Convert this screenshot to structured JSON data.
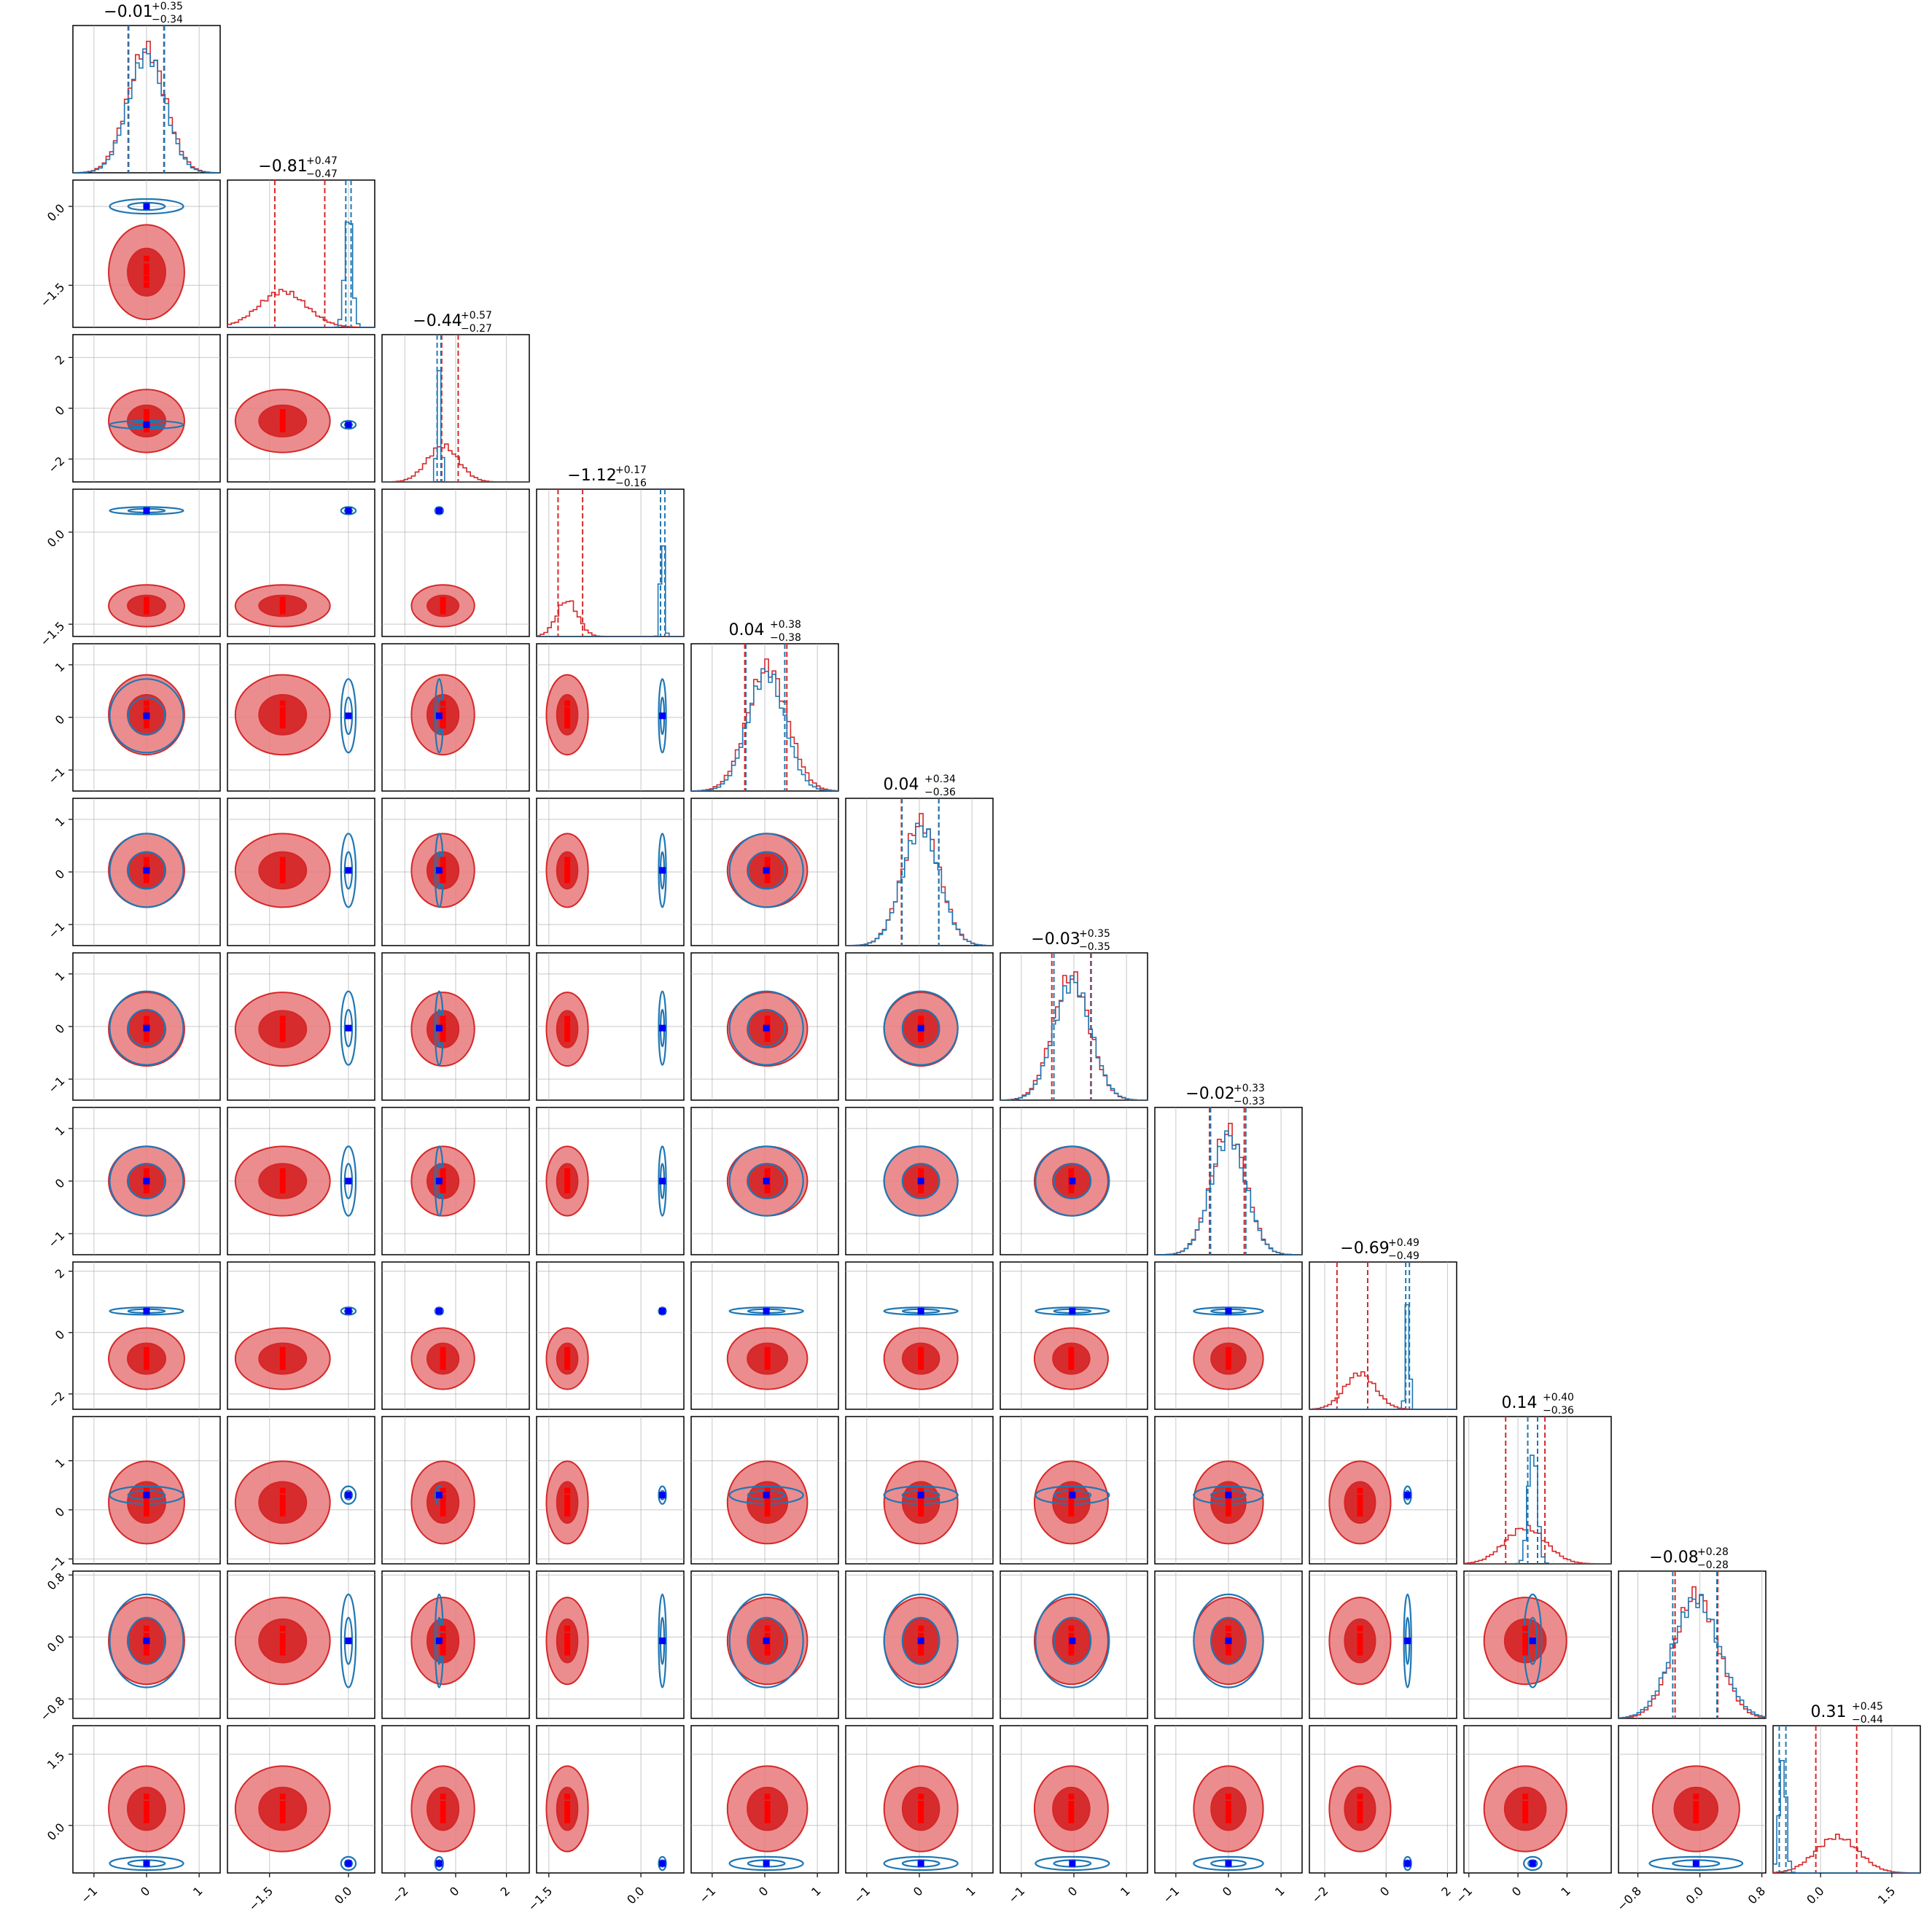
{
  "chart_data": {
    "type": "corner",
    "n_params": 12,
    "grid": true,
    "colors": {
      "red": "#d62728",
      "red_fill": "#e8797a",
      "red_dark": "#d62728",
      "blue": "#1f77b4",
      "marker_red": "#ff0000",
      "marker_blue": "#0000ff"
    },
    "titles": [
      {
        "median": "−0.01",
        "plus": "+0.35",
        "minus": "−0.34"
      },
      {
        "median": "−0.81",
        "plus": "+0.47",
        "minus": "−0.47"
      },
      {
        "median": "−0.44",
        "plus": "+0.57",
        "minus": "−0.27"
      },
      {
        "median": "−1.12",
        "plus": "+0.17",
        "minus": "−0.16"
      },
      {
        "median": "0.04",
        "plus": "+0.38",
        "minus": "−0.38"
      },
      {
        "median": "0.04",
        "plus": "+0.34",
        "minus": "−0.36"
      },
      {
        "median": "−0.03",
        "plus": "+0.35",
        "minus": "−0.35"
      },
      {
        "median": "−0.02",
        "plus": "+0.33",
        "minus": "−0.33"
      },
      {
        "median": "−0.69",
        "plus": "+0.49",
        "minus": "−0.49"
      },
      {
        "median": "0.14",
        "plus": "+0.40",
        "minus": "−0.36"
      },
      {
        "median": "−0.08",
        "plus": "+0.28",
        "minus": "−0.28"
      },
      {
        "median": "0.31",
        "plus": "+0.45",
        "minus": "−0.44"
      }
    ],
    "axes": [
      {
        "range": [
          -1.4,
          1.4
        ],
        "ticks": [
          -1,
          0,
          1
        ],
        "tick_labels": [
          "−1",
          "0",
          "1"
        ]
      },
      {
        "range": [
          -2.3,
          0.5
        ],
        "ticks": [
          -1.5,
          0.0
        ],
        "tick_labels": [
          "−1.5",
          "0.0"
        ]
      },
      {
        "range": [
          -2.9,
          2.9
        ],
        "ticks": [
          -2,
          0,
          2
        ],
        "tick_labels": [
          "−2",
          "0",
          "2"
        ]
      },
      {
        "range": [
          -1.7,
          0.7
        ],
        "ticks": [
          -1.5,
          0.0
        ],
        "tick_labels": [
          "−1.5",
          "0.0"
        ]
      },
      {
        "range": [
          -1.4,
          1.4
        ],
        "ticks": [
          -1,
          0,
          1
        ],
        "tick_labels": [
          "−1",
          "0",
          "1"
        ]
      },
      {
        "range": [
          -1.4,
          1.4
        ],
        "ticks": [
          -1,
          0,
          1
        ],
        "tick_labels": [
          "−1",
          "0",
          "1"
        ]
      },
      {
        "range": [
          -1.4,
          1.4
        ],
        "ticks": [
          -1,
          0,
          1
        ],
        "tick_labels": [
          "−1",
          "0",
          "1"
        ]
      },
      {
        "range": [
          -1.4,
          1.4
        ],
        "ticks": [
          -1,
          0,
          1
        ],
        "tick_labels": [
          "−1",
          "0",
          "1"
        ]
      },
      {
        "range": [
          -2.5,
          2.3
        ],
        "ticks": [
          -2,
          0,
          2
        ],
        "tick_labels": [
          "−2",
          "0",
          "2"
        ]
      },
      {
        "range": [
          -1.1,
          1.9
        ],
        "ticks": [
          -1,
          0,
          1
        ],
        "tick_labels": [
          "−1",
          "0",
          "1"
        ]
      },
      {
        "range": [
          -1.05,
          0.85
        ],
        "ticks": [
          -0.8,
          0.0,
          0.8
        ],
        "tick_labels": [
          "−0.8",
          "0.0",
          "0.8"
        ]
      },
      {
        "range": [
          -1.0,
          2.1
        ],
        "ticks": [
          0.0,
          1.5
        ],
        "tick_labels": [
          "0.0",
          "1.5"
        ]
      }
    ],
    "series": [
      {
        "color": "red",
        "mean": [
          0.0,
          -1.25,
          -0.5,
          -1.2,
          0.05,
          0.03,
          -0.05,
          0.0,
          -0.85,
          0.15,
          -0.05,
          0.35
        ],
        "sd": [
          0.36,
          0.45,
          0.62,
          0.17,
          0.38,
          0.35,
          0.35,
          0.33,
          0.5,
          0.42,
          0.28,
          0.45
        ],
        "q16": [
          -0.35,
          -1.4,
          -0.55,
          -1.35,
          -0.38,
          -0.34,
          -0.42,
          -0.36,
          -1.6,
          -0.25,
          -0.32,
          -0.1
        ],
        "q84": [
          0.33,
          -0.45,
          0.1,
          -0.95,
          0.42,
          0.37,
          0.32,
          0.3,
          -0.6,
          0.55,
          0.23,
          0.76
        ]
      },
      {
        "color": "blue",
        "mean": [
          0.0,
          0.0,
          -0.65,
          0.35,
          0.03,
          0.03,
          -0.03,
          0.0,
          0.7,
          0.3,
          -0.05,
          -0.8
        ],
        "sd": [
          0.35,
          0.07,
          0.08,
          0.03,
          0.35,
          0.35,
          0.35,
          0.33,
          0.06,
          0.09,
          0.3,
          0.07
        ],
        "q16": [
          -0.34,
          -0.05,
          -0.73,
          0.32,
          -0.36,
          -0.33,
          -0.38,
          -0.34,
          0.64,
          0.2,
          -0.35,
          -0.87
        ],
        "q84": [
          0.34,
          0.05,
          -0.58,
          0.39,
          0.38,
          0.37,
          0.33,
          0.33,
          0.76,
          0.4,
          0.22,
          -0.73
        ]
      }
    ],
    "truth_red_points": [
      [
        0.0,
        0.0
      ],
      [
        0.0,
        0.2
      ],
      [
        0.0,
        0.4
      ],
      [
        0.0,
        0.6
      ],
      [
        0.0,
        0.95
      ],
      [
        0.0,
        -0.2
      ],
      [
        0.0,
        -0.45
      ],
      [
        0.0,
        -0.7
      ],
      [
        0.0,
        -0.9
      ],
      [
        0.0,
        -1.15
      ]
    ],
    "truth_blue": [
      0.0,
      0.0,
      -0.65,
      0.35,
      0.03,
      0.03,
      -0.03,
      0.0,
      0.7,
      0.3,
      -0.05,
      -0.8
    ],
    "truth_red": [
      0.0,
      -0.9,
      0.2,
      -1.12,
      0.05,
      0.05,
      -0.03,
      0.0,
      -0.8,
      0.8,
      0.05,
      0.15
    ]
  }
}
